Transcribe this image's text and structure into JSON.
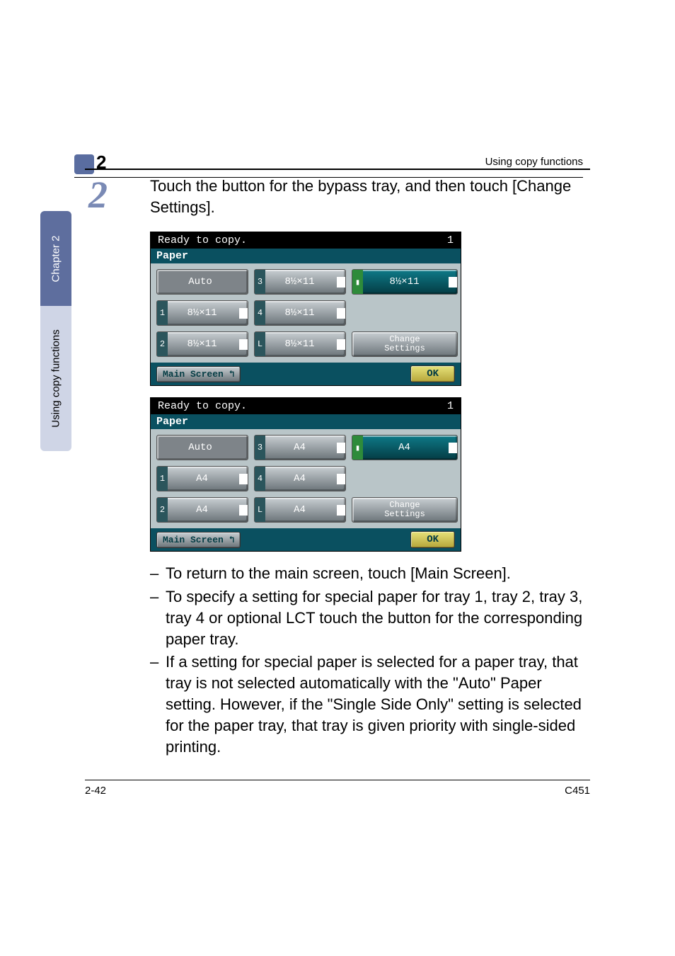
{
  "header": {
    "chapter_num": "2",
    "running": "Using copy functions"
  },
  "sidebar": {
    "chapter_label": "Chapter 2",
    "section_label": "Using copy functions"
  },
  "step": {
    "number": "2",
    "text": "Touch the button for the bypass tray, and then touch [Change Settings]."
  },
  "screen1": {
    "status": "Ready to copy.",
    "count": "1",
    "title": "Paper",
    "auto": "Auto",
    "b1_tag": "1",
    "b1_label": "8½×11",
    "b2_tag": "2",
    "b2_label": "8½×11",
    "b3_tag": "3",
    "b3_label": "8½×11",
    "b4_tag": "4",
    "b4_label": "8½×11",
    "bL_tag": "L",
    "bL_label": "8½×11",
    "bT_label": "8½×11",
    "change1": "Change",
    "change2": "Settings",
    "main": "Main Screen",
    "ok": "OK"
  },
  "screen2": {
    "status": "Ready to copy.",
    "count": "1",
    "title": "Paper",
    "auto": "Auto",
    "b1_tag": "1",
    "b1_label": "A4",
    "b2_tag": "2",
    "b2_label": "A4",
    "b3_tag": "3",
    "b3_label": "A4",
    "b4_tag": "4",
    "b4_label": "A4",
    "bL_tag": "L",
    "bL_label": "A4",
    "bT_label": "A4",
    "change1": "Change",
    "change2": "Settings",
    "main": "Main Screen",
    "ok": "OK"
  },
  "bullets": {
    "i1": "To return to the main screen, touch [Main Screen].",
    "i2": "To specify a setting for special paper for tray 1, tray 2, tray 3, tray 4 or optional LCT touch the button for the corresponding paper tray.",
    "i3": "If a setting for special paper is selected for a paper tray, that tray is not selected automatically with the \"Auto\" Paper setting. However, if the \"Single Side Only\" setting is selected for the paper tray, that tray is given priority with single-sided printing."
  },
  "footer": {
    "left": "2-42",
    "right": "C451"
  }
}
